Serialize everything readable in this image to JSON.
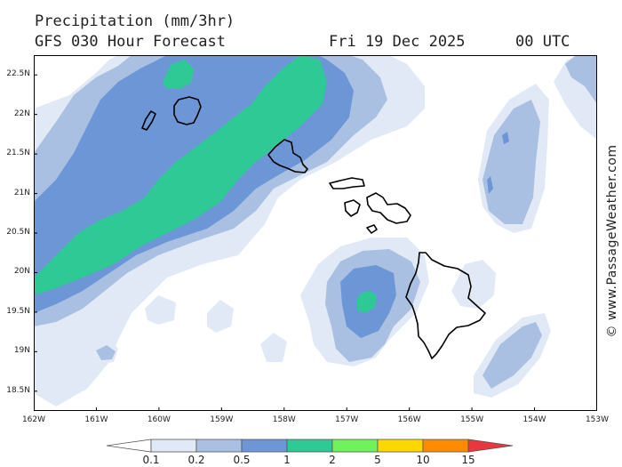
{
  "header": {
    "title": "Precipitation (mm/3hr)",
    "subtitle": "GFS 030 Hour Forecast",
    "date": "Fri 19 Dec 2025",
    "time": "00 UTC"
  },
  "credit": "© www.PassageWeather.com",
  "map": {
    "lon_range": [
      -162,
      -153
    ],
    "lat_range": [
      18.25,
      22.75
    ],
    "lon_labels": [
      "162W",
      "161W",
      "160W",
      "159W",
      "158W",
      "157W",
      "156W",
      "155W",
      "154W",
      "153W"
    ],
    "lat_labels": [
      "22.5N",
      "22N",
      "21.5N",
      "21N",
      "20.5N",
      "20N",
      "19.5N",
      "19N",
      "18.5N"
    ],
    "land_outline_color": "#000000",
    "background_color": "#ffffff"
  },
  "legend": {
    "levels": [
      "0.1",
      "0.2",
      "0.5",
      "1",
      "2",
      "5",
      "10",
      "15"
    ],
    "colors": [
      "#ffffff",
      "#e2e9f6",
      "#a9c0e2",
      "#6d96d6",
      "#2ec995",
      "#6ef45a",
      "#ffd700",
      "#ff8c00",
      "#e8373f"
    ]
  }
}
